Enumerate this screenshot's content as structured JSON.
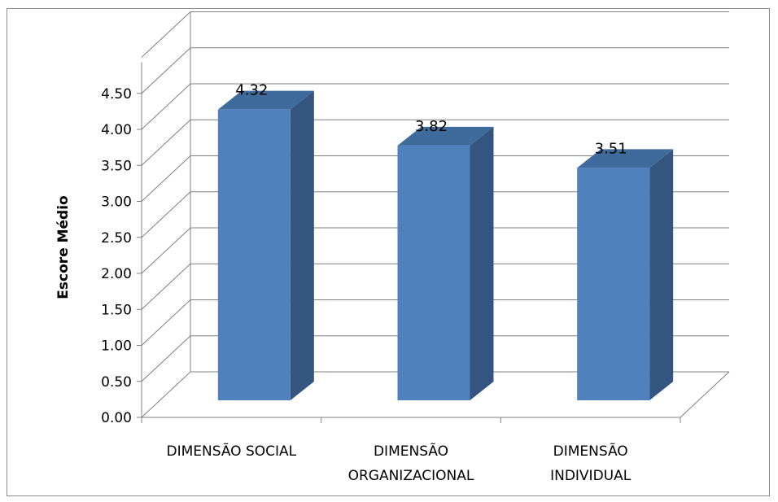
{
  "chart_data": {
    "type": "bar",
    "title": "",
    "xlabel": "",
    "ylabel": "Escore Médio",
    "categories": [
      "DIMENSÃO SOCIAL",
      "DIMENSÃO ORGANIZACIONAL",
      "DIMENSÃO INDIVIDUAL"
    ],
    "category_lines": [
      [
        "DIMENSÃO SOCIAL"
      ],
      [
        "DIMENSÃO",
        "ORGANIZACIONAL"
      ],
      [
        "DIMENSÃO",
        "INDIVIDUAL"
      ]
    ],
    "values": [
      4.32,
      3.82,
      3.51
    ],
    "value_labels": [
      "4.32",
      "3.82",
      "3.51"
    ],
    "y_ticks": [
      "0.00",
      "0.50",
      "1.00",
      "1.50",
      "2.00",
      "2.50",
      "3.00",
      "3.50",
      "4.00",
      "4.50"
    ],
    "ylim": [
      0,
      5.0
    ],
    "grid": true,
    "legend": "none",
    "style": "3d-column",
    "colors": {
      "bar_front": "#4f81bd",
      "bar_side": "#33557f",
      "bar_top": "#3f6a9c",
      "grid": "#808080",
      "wall_line": "#808080"
    }
  }
}
